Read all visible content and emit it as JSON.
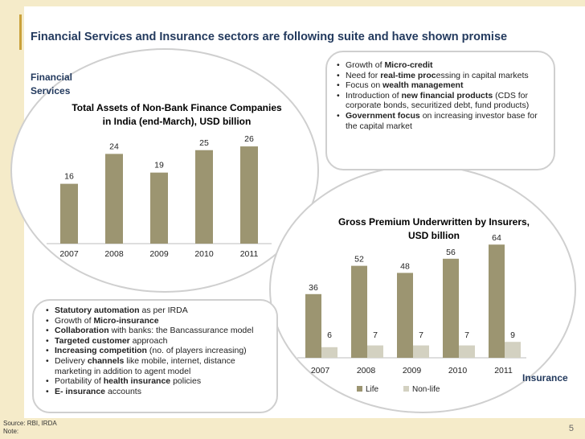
{
  "title": "Financial Services and Insurance sectors are following suite and have shown promise",
  "financial_label_line1": "Financial",
  "financial_label_line2": "Services",
  "insurance_label": "Insurance",
  "colors": {
    "dark_bar": "#9c9571",
    "light_bar": "#d3d1c1",
    "title": "#233a5e",
    "accent": "#f5ebc9"
  },
  "financial_bullets": [
    {
      "pre": "Growth of ",
      "bold": "Micro-credit",
      "post": ""
    },
    {
      "pre": "Need for ",
      "bold": "real-time proc",
      "post": "essing in capital markets"
    },
    {
      "pre": "Focus on ",
      "bold": "wealth management",
      "post": ""
    },
    {
      "pre": "Introduction of ",
      "bold": "new financial products",
      "post": " (CDS for corporate bonds, securitized debt, fund products)"
    },
    {
      "pre": "",
      "bold": "Government focus",
      "post": " on increasing investor base for the capital market"
    }
  ],
  "insurance_bullets": [
    {
      "pre": "",
      "bold": "Statutory automation",
      "post": " as per IRDA"
    },
    {
      "pre": "Growth of ",
      "bold": "Micro-insurance",
      "post": ""
    },
    {
      "pre": "",
      "bold": "Collaboration",
      "post": " with banks: the Bancassurance model"
    },
    {
      "pre": "",
      "bold": "Targeted customer",
      "post": " approach"
    },
    {
      "pre": "",
      "bold": "Increasing competition",
      "post": " (no. of players increasing)"
    },
    {
      "pre": "Delivery ",
      "bold": "channels",
      "post": " like mobile, internet, distance marketing in addition to agent model"
    },
    {
      "pre": "Portability of ",
      "bold": "health insurance",
      "post": " policies"
    },
    {
      "pre": "",
      "bold": "E- insurance",
      "post": " accounts"
    }
  ],
  "chart_data": [
    {
      "type": "bar",
      "title_line1": "Total Assets of Non-Bank Finance Companies",
      "title_line2": "in India (end-March), USD billion",
      "title": "Total Assets of Non-Bank Finance Companies in India (end-March), USD billion",
      "categories": [
        "2007",
        "2008",
        "2009",
        "2010",
        "2011"
      ],
      "values": [
        16,
        24,
        19,
        25,
        26
      ],
      "xlabel": "",
      "ylabel": "",
      "ylim": [
        0,
        30
      ],
      "grid": false
    },
    {
      "type": "bar",
      "title_line1": "Gross Premium Underwritten by Insurers,",
      "title_line2": "USD billion",
      "title": "Gross Premium Underwritten by Insurers, USD billion",
      "categories": [
        "2007",
        "2008",
        "2009",
        "2010",
        "2011"
      ],
      "series": [
        {
          "name": "Life",
          "values": [
            36,
            52,
            48,
            56,
            64
          ]
        },
        {
          "name": "Non-life",
          "values": [
            6,
            7,
            7,
            7,
            9
          ]
        }
      ],
      "xlabel": "",
      "ylabel": "",
      "ylim": [
        0,
        70
      ],
      "legend": "bottom",
      "grid": false
    }
  ],
  "footer": {
    "source": "Source: RBI, IRDA",
    "note": "Note:",
    "page": "5"
  }
}
